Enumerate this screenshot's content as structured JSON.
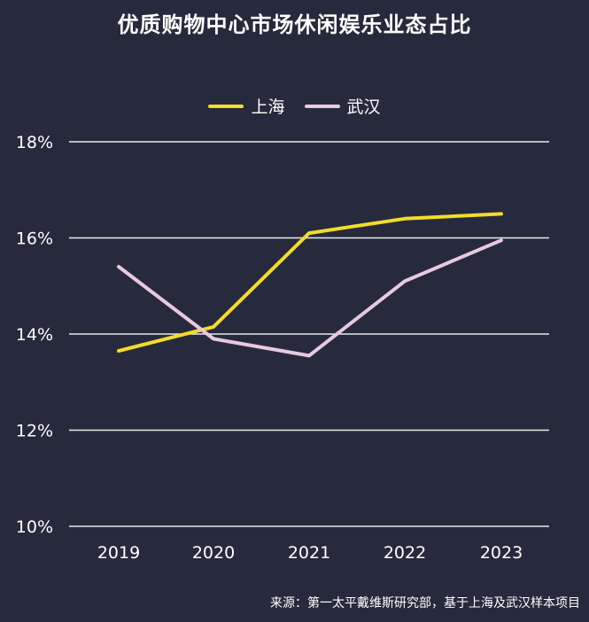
{
  "chart_data": {
    "type": "line",
    "title": "优质购物中心市场休闲娱乐业态占比",
    "categories": [
      "2019",
      "2020",
      "2021",
      "2022",
      "2023"
    ],
    "series": [
      {
        "name": "上海",
        "color": "#f3dc2a",
        "values": [
          13.65,
          14.15,
          16.1,
          16.4,
          16.5
        ]
      },
      {
        "name": "武汉",
        "color": "#e8c9e0",
        "values": [
          15.4,
          13.9,
          13.55,
          15.1,
          15.95
        ]
      }
    ],
    "ylim": [
      10,
      18
    ],
    "yticks": [
      "10%",
      "12%",
      "14%",
      "16%",
      "18%"
    ],
    "ytick_values": [
      10,
      12,
      14,
      16,
      18
    ],
    "grid": true,
    "legend_position": "top-center"
  },
  "source": "来源：第一太平戴维斯研究部，基于上海及武汉样本项目"
}
